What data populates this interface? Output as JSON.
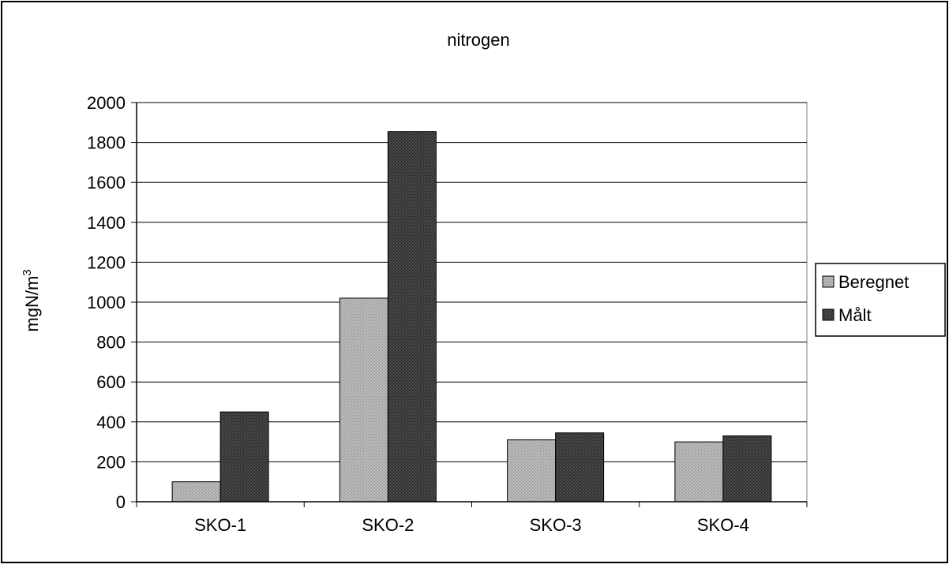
{
  "chart_data": {
    "type": "bar",
    "title": "nitrogen",
    "ylabel_base": "mgN/m",
    "ylabel_sup": "3",
    "xlabel": "",
    "categories": [
      "SKO-1",
      "SKO-2",
      "SKO-3",
      "SKO-4"
    ],
    "series": [
      {
        "name": "Beregnet",
        "values": [
          100,
          1020,
          310,
          300
        ],
        "color": "#a8a8a8"
      },
      {
        "name": "Målt",
        "values": [
          450,
          1855,
          345,
          330
        ],
        "color": "#3a3a3a"
      }
    ],
    "ylim": [
      0,
      2000
    ],
    "yticks": [
      "0",
      "200",
      "400",
      "600",
      "800",
      "1000",
      "1200",
      "1400",
      "1600",
      "1800",
      "2000"
    ],
    "grid": true,
    "legend_position": "right"
  }
}
